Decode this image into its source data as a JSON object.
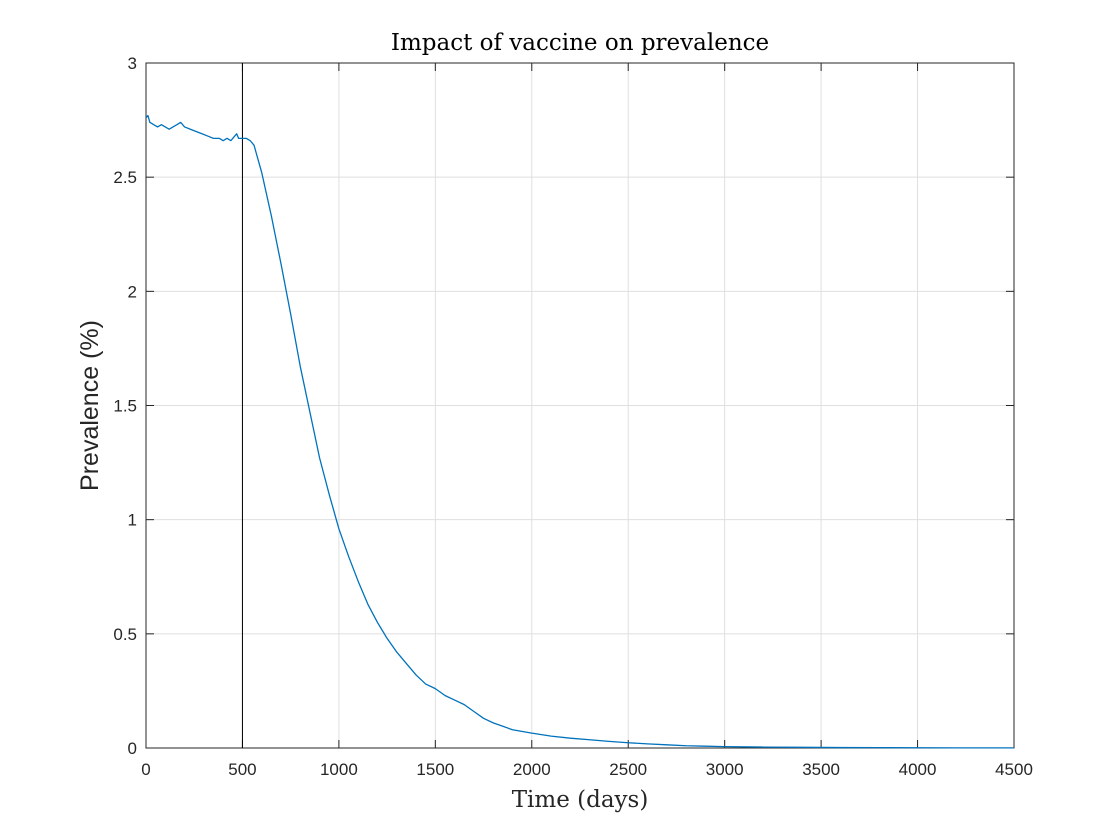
{
  "chart_data": {
    "type": "line",
    "title": "Impact of vaccine on prevalence",
    "xlabel": "Time (days)",
    "ylabel": "Prevalence (%)",
    "xlim": [
      0,
      4500
    ],
    "ylim": [
      0,
      3
    ],
    "grid": true,
    "x_ticks": [
      0,
      500,
      1000,
      1500,
      2000,
      2500,
      3000,
      3500,
      4000,
      4500
    ],
    "x_tick_labels": [
      "0",
      "500",
      "1000",
      "1500",
      "2000",
      "2500",
      "3000",
      "3500",
      "4000",
      "4500"
    ],
    "y_ticks": [
      0,
      0.5,
      1,
      1.5,
      2,
      2.5,
      3
    ],
    "y_tick_labels": [
      "0",
      "0.5",
      "1",
      "1.5",
      "2",
      "2.5",
      "3"
    ],
    "reference_line": {
      "x": 500,
      "color": "#000000"
    },
    "series": [
      {
        "name": "Prevalence",
        "color": "#0072bd",
        "x": [
          0,
          10,
          20,
          40,
          60,
          80,
          100,
          120,
          140,
          160,
          180,
          200,
          230,
          260,
          290,
          320,
          350,
          380,
          400,
          420,
          440,
          460,
          470,
          480,
          500,
          520,
          540,
          560,
          580,
          600,
          650,
          700,
          750,
          800,
          850,
          900,
          950,
          1000,
          1050,
          1100,
          1150,
          1200,
          1250,
          1300,
          1350,
          1400,
          1450,
          1500,
          1550,
          1600,
          1650,
          1700,
          1750,
          1800,
          1900,
          2000,
          2100,
          2200,
          2300,
          2400,
          2500,
          2600,
          2700,
          2800,
          2900,
          3000,
          3200,
          3400,
          3600,
          3800,
          4000,
          4200,
          4500
        ],
        "values": [
          2.76,
          2.77,
          2.74,
          2.73,
          2.72,
          2.73,
          2.72,
          2.71,
          2.72,
          2.73,
          2.74,
          2.72,
          2.71,
          2.7,
          2.69,
          2.68,
          2.67,
          2.67,
          2.66,
          2.67,
          2.66,
          2.68,
          2.69,
          2.67,
          2.67,
          2.67,
          2.66,
          2.64,
          2.58,
          2.52,
          2.33,
          2.12,
          1.9,
          1.67,
          1.47,
          1.27,
          1.11,
          0.96,
          0.84,
          0.73,
          0.63,
          0.55,
          0.48,
          0.42,
          0.37,
          0.32,
          0.28,
          0.26,
          0.23,
          0.21,
          0.19,
          0.16,
          0.13,
          0.11,
          0.08,
          0.065,
          0.052,
          0.043,
          0.036,
          0.029,
          0.023,
          0.018,
          0.014,
          0.01,
          0.008,
          0.006,
          0.004,
          0.003,
          0.002,
          0.0015,
          0.001,
          0.0007,
          0.0005
        ]
      }
    ]
  }
}
